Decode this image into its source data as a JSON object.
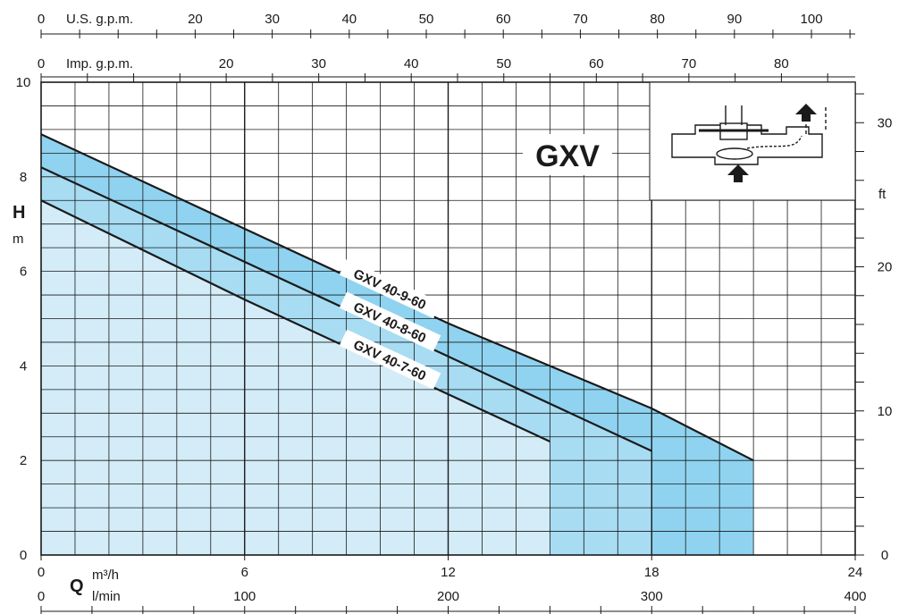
{
  "chart_data": {
    "type": "line",
    "title": "GXV",
    "ylabel_symbol": "H",
    "ylabel_unit": "m",
    "y_right_unit": "ft",
    "xlabel_symbol": "Q",
    "x_unit_m3h": "m³/h",
    "x_unit_lmin": "l/min",
    "top_axis_us_label": "U.S. g.p.m.",
    "top_axis_imp_label": "Imp. g.p.m.",
    "xlim_m3h": [
      0,
      24
    ],
    "ylim_m": [
      0,
      10
    ],
    "ylim_ft": [
      0,
      32.8
    ],
    "grid": true,
    "ticks": {
      "us_gpm": [
        0,
        20,
        30,
        40,
        50,
        60,
        70,
        80,
        90,
        100
      ],
      "imp_gpm": [
        0,
        20,
        30,
        40,
        50,
        60,
        70,
        80
      ],
      "m3h": [
        0,
        6,
        12,
        18,
        24
      ],
      "lmin": [
        0,
        100,
        200,
        300,
        400
      ],
      "h_m": [
        0,
        2,
        4,
        6,
        8,
        10
      ],
      "h_ft": [
        0,
        10,
        20,
        30
      ]
    },
    "series": [
      {
        "name": "GXV 40-9-60",
        "x": [
          0,
          6,
          12,
          18,
          21
        ],
        "y": [
          8.9,
          6.9,
          4.9,
          3.1,
          2.0
        ]
      },
      {
        "name": "GXV 40-8-60",
        "x": [
          0,
          6,
          12,
          18
        ],
        "y": [
          8.2,
          6.2,
          4.2,
          2.2
        ]
      },
      {
        "name": "GXV 40-7-60",
        "x": [
          0,
          6,
          12,
          15
        ],
        "y": [
          7.5,
          5.4,
          3.4,
          2.4
        ]
      }
    ],
    "colors": {
      "band_light": "#d3ecf8",
      "band_mid": "#a7dcf3",
      "band_dark": "#8fd3f0",
      "line": "#1a1a1a"
    }
  }
}
